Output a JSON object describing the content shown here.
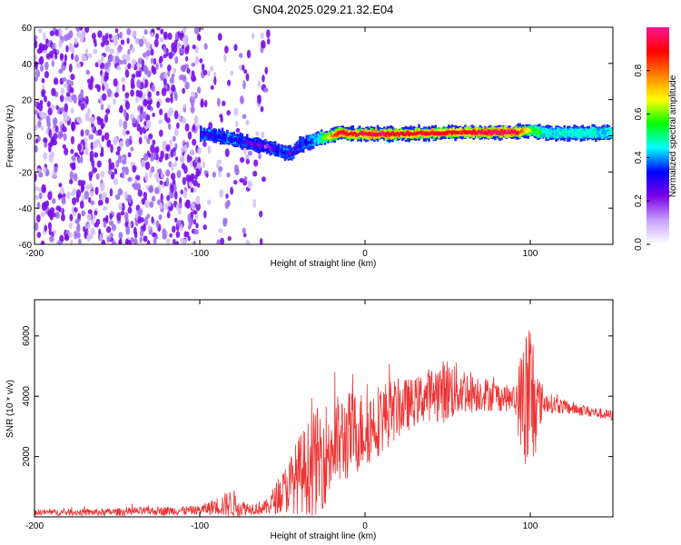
{
  "title": "GN04.2025.029.21.32.E04",
  "chart_data": [
    {
      "type": "heatmap",
      "xlabel": "Height of straight line (km)",
      "ylabel": "Frequency (Hz)",
      "xlim": [
        -200,
        150
      ],
      "ylim": [
        -60,
        60
      ],
      "x_ticks": [
        -200,
        -100,
        0,
        100
      ],
      "y_ticks": [
        -60,
        -40,
        -20,
        0,
        20,
        40,
        60
      ],
      "colorbar": {
        "label": "Normalized spectral amplitude",
        "range": [
          0.0,
          1.0
        ],
        "ticks": [
          "0.0",
          "0.2",
          "0.4",
          "0.6",
          "0.8"
        ],
        "colors": [
          "#ffffff",
          "#c8a0ff",
          "#7a00e6",
          "#0000ff",
          "#00ffff",
          "#00ff00",
          "#ffff00",
          "#ff8000",
          "#ff0000",
          "#ff1493"
        ]
      },
      "description_series": [
        {
          "name": "noise",
          "x_range": [
            -200,
            -58
          ],
          "freq_range": [
            -60,
            60
          ],
          "level": 0.05
        },
        {
          "name": "carrier",
          "x": [
            -100,
            -90,
            -80,
            -70,
            -60,
            -50,
            -45,
            -40,
            -30,
            -20,
            -15,
            -10,
            0,
            10,
            20,
            40,
            60,
            80,
            90,
            100,
            110,
            150
          ],
          "y": [
            1,
            0,
            -2,
            -4,
            -6,
            -9,
            -10,
            -5,
            -2,
            0,
            2,
            1,
            1,
            1,
            1,
            1.5,
            2,
            2,
            2,
            3,
            1.5,
            1.5
          ],
          "peak": [
            0.25,
            0.3,
            0.35,
            0.25,
            0.2,
            0.35,
            0.25,
            0.3,
            0.4,
            0.8,
            0.95,
            0.9,
            0.95,
            0.95,
            0.9,
            0.9,
            0.9,
            0.98,
            0.95,
            0.6,
            0.45,
            0.45
          ]
        }
      ]
    },
    {
      "type": "line",
      "xlabel": "Height of straight line (km)",
      "ylabel": "SNR (10 * v/v)",
      "xlim": [
        -200,
        150
      ],
      "ylim": [
        0,
        7200
      ],
      "x_ticks": [
        -200,
        -100,
        0,
        100
      ],
      "y_ticks": [
        2000,
        4000,
        6000
      ],
      "color": "#ee3333",
      "envelope": {
        "x": [
          -200,
          -160,
          -120,
          -100,
          -90,
          -80,
          -75,
          -70,
          -60,
          -50,
          -40,
          -30,
          -20,
          -10,
          0,
          10,
          20,
          30,
          40,
          50,
          60,
          70,
          80,
          90,
          100,
          105,
          110,
          120,
          130,
          140,
          150
        ],
        "mean": [
          150,
          150,
          200,
          220,
          350,
          450,
          300,
          280,
          300,
          800,
          1400,
          1800,
          2300,
          2700,
          2900,
          3300,
          3600,
          3800,
          4100,
          4200,
          4200,
          4100,
          4000,
          3900,
          3800,
          3800,
          3800,
          3650,
          3550,
          3450,
          3350
        ],
        "spread": [
          100,
          120,
          150,
          150,
          300,
          500,
          300,
          200,
          250,
          700,
          1300,
          1800,
          1700,
          1500,
          1300,
          1200,
          1000,
          800,
          900,
          1100,
          800,
          600,
          500,
          400,
          3400,
          900,
          350,
          250,
          200,
          180,
          180
        ]
      }
    }
  ]
}
